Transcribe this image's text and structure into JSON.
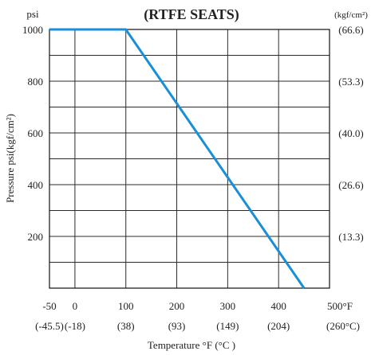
{
  "chart_data": {
    "type": "line",
    "title": "(RTFE  SEATS)",
    "left_unit": "psi",
    "right_unit": "(kgf/cm²)",
    "ylabel": "Pressure  psi(kgf/cm²)",
    "xlabel": "Temperature °F (°C )",
    "xlim": [
      -50,
      500
    ],
    "ylim": [
      0,
      1000
    ],
    "x_ticks": [
      -50,
      0,
      100,
      200,
      300,
      400,
      500
    ],
    "x_tick_labels": [
      "-50",
      "0",
      "100",
      "200",
      "300",
      "400",
      "500°F"
    ],
    "x_tick_labels_c": [
      "(-45.5)",
      "(-18)",
      "(38)",
      "(93)",
      "(149)",
      "(204)",
      "(260°C)"
    ],
    "y_ticks": [
      200,
      400,
      600,
      800,
      1000
    ],
    "y_tick_labels": [
      "200",
      "400",
      "600",
      "800",
      "1000"
    ],
    "y_tick_labels_right": [
      "(13.3)",
      "(26.6)",
      "(40.0)",
      "(53.3)",
      "(66.6)"
    ],
    "grid": true,
    "series": [
      {
        "color": "#1a8fd8",
        "x": [
          -50,
          100,
          450
        ],
        "y": [
          1000,
          1000,
          0
        ]
      }
    ]
  }
}
